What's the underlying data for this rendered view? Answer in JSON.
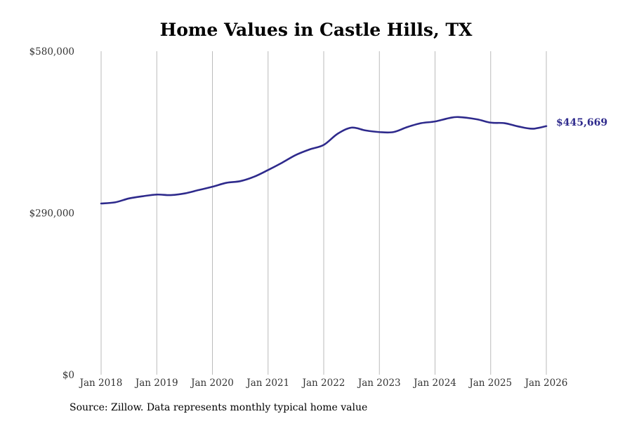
{
  "colors": {
    "line": "#2e2a8c",
    "grid": "#bbbbbb",
    "background": "#ffffff"
  },
  "chart_data": {
    "type": "line",
    "title": "Home Values in Castle Hills, TX",
    "xlabel": "",
    "ylabel": "",
    "x_ticks": [
      "Jan 2018",
      "Jan 2019",
      "Jan 2020",
      "Jan 2021",
      "Jan 2022",
      "Jan 2023",
      "Jan 2024",
      "Jan 2025",
      "Jan 2026"
    ],
    "y_ticks": [
      "$0",
      "$290,000",
      "$580,000"
    ],
    "ylim": [
      0,
      580000
    ],
    "xlim": [
      2018,
      2026
    ],
    "grid": "vertical",
    "end_label": "$445,669",
    "series": [
      {
        "name": "Typical home value",
        "x": [
          2018.0,
          2018.25,
          2018.5,
          2018.75,
          2019.0,
          2019.25,
          2019.5,
          2019.75,
          2020.0,
          2020.25,
          2020.5,
          2020.75,
          2021.0,
          2021.25,
          2021.5,
          2021.75,
          2022.0,
          2022.25,
          2022.5,
          2022.75,
          2023.0,
          2023.25,
          2023.5,
          2023.75,
          2024.0,
          2024.25,
          2024.42,
          2024.75,
          2025.0,
          2025.25,
          2025.5,
          2025.75,
          2026.0
        ],
        "values": [
          307000,
          309000,
          316000,
          320000,
          323000,
          322000,
          325000,
          331000,
          337000,
          344000,
          347000,
          355000,
          367000,
          380000,
          394000,
          404000,
          412000,
          432000,
          443000,
          438000,
          435000,
          435000,
          444000,
          451000,
          454000,
          460000,
          462000,
          458000,
          452000,
          451000,
          445000,
          441000,
          445669
        ]
      }
    ]
  },
  "source_note": "Source: Zillow. Data represents monthly typical home value"
}
